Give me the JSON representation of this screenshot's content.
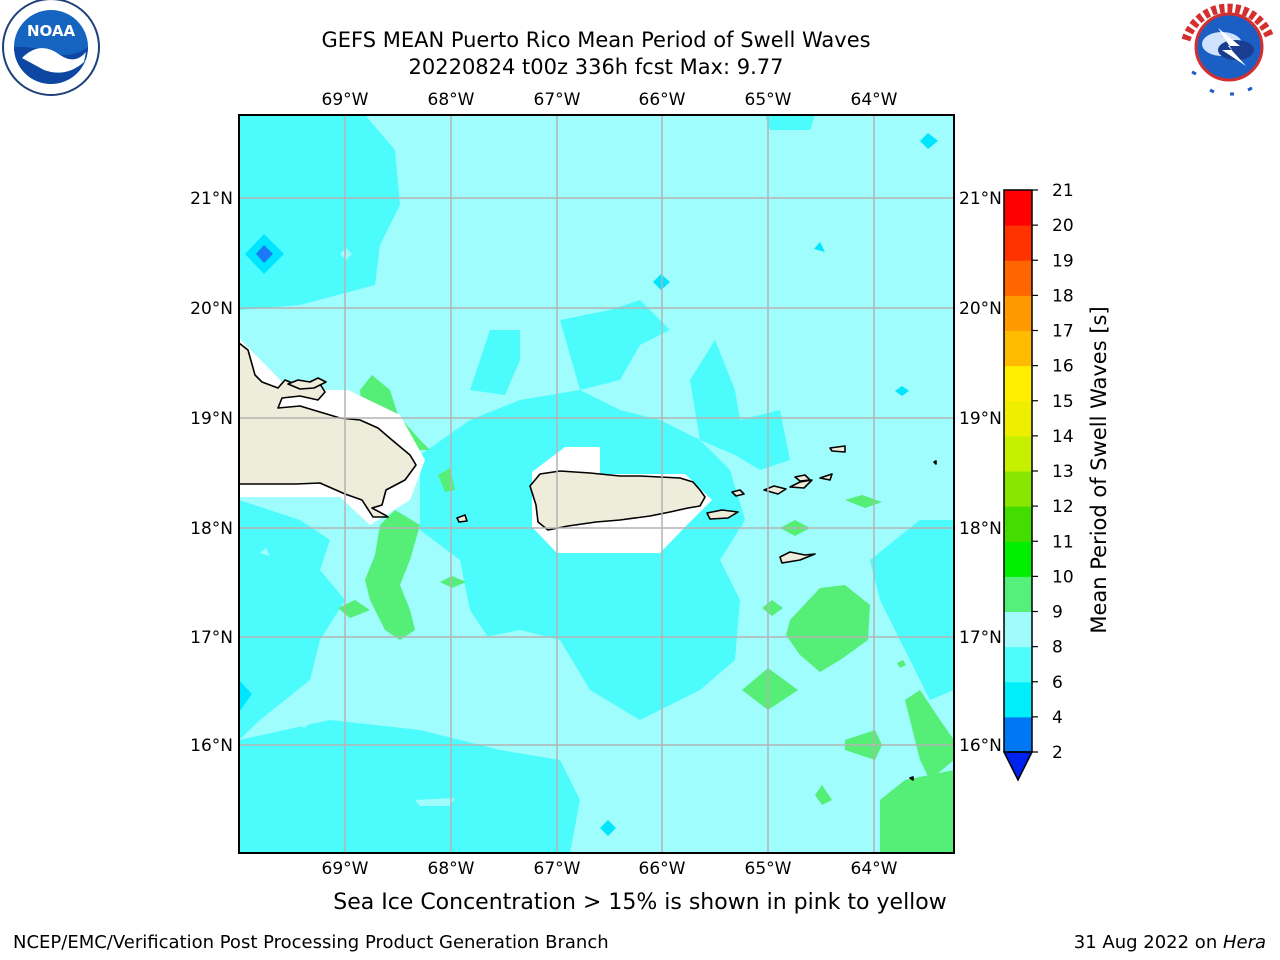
{
  "header": {
    "title_line1": "GEFS MEAN Puerto Rico Mean Period of Swell Waves",
    "title_line2": "20220824 t00z 336h fcst   Max: 9.77"
  },
  "logos": {
    "left": {
      "text": "NOAA",
      "ring_text": "NATIONAL OCEANIC AND ATMOSPHERIC ADMINISTRATION · U.S. DEPARTMENT OF COMMERCE"
    },
    "right": {
      "ring_text": "NATIONAL WEATHER SERVICE"
    }
  },
  "map": {
    "lon_labels": [
      "69°W",
      "68°W",
      "67°W",
      "66°W",
      "65°W",
      "64°W"
    ],
    "lat_labels": [
      "21°N",
      "20°N",
      "19°N",
      "18°N",
      "17°N",
      "16°N"
    ],
    "colors": {
      "ocean_8_9": "#9ffdfd",
      "ocean_6_8": "#4cfcfc",
      "ocean_4_6": "#00e5ff",
      "ocean_2_4": "#1a7af5",
      "swell_9_10": "#55ee77",
      "land": "#eeecda",
      "ice_free_mask": "#ffffff"
    }
  },
  "colorbar": {
    "title": "Mean Period of Swell Waves [s]",
    "labels": [
      "2",
      "4",
      "6",
      "8",
      "9",
      "10",
      "11",
      "12",
      "13",
      "14",
      "15",
      "16",
      "17",
      "18",
      "19",
      "20",
      "21"
    ],
    "colors": [
      "#0022ee",
      "#0077f5",
      "#00eefa",
      "#4efcfc",
      "#a0fcfc",
      "#55f07a",
      "#00ee00",
      "#44dd00",
      "#88e600",
      "#c6f000",
      "#eeee00",
      "#ffee00",
      "#ffbb00",
      "#ff9900",
      "#ff6600",
      "#ff3300",
      "#ff0000"
    ]
  },
  "subtitle": "Sea Ice Concentration > 15% is shown in pink to yellow",
  "footer": {
    "left": "NCEP/EMC/Verification Post Processing Product Generation Branch",
    "right_prefix": "31 Aug 2022 on ",
    "right_italic": "Hera"
  }
}
